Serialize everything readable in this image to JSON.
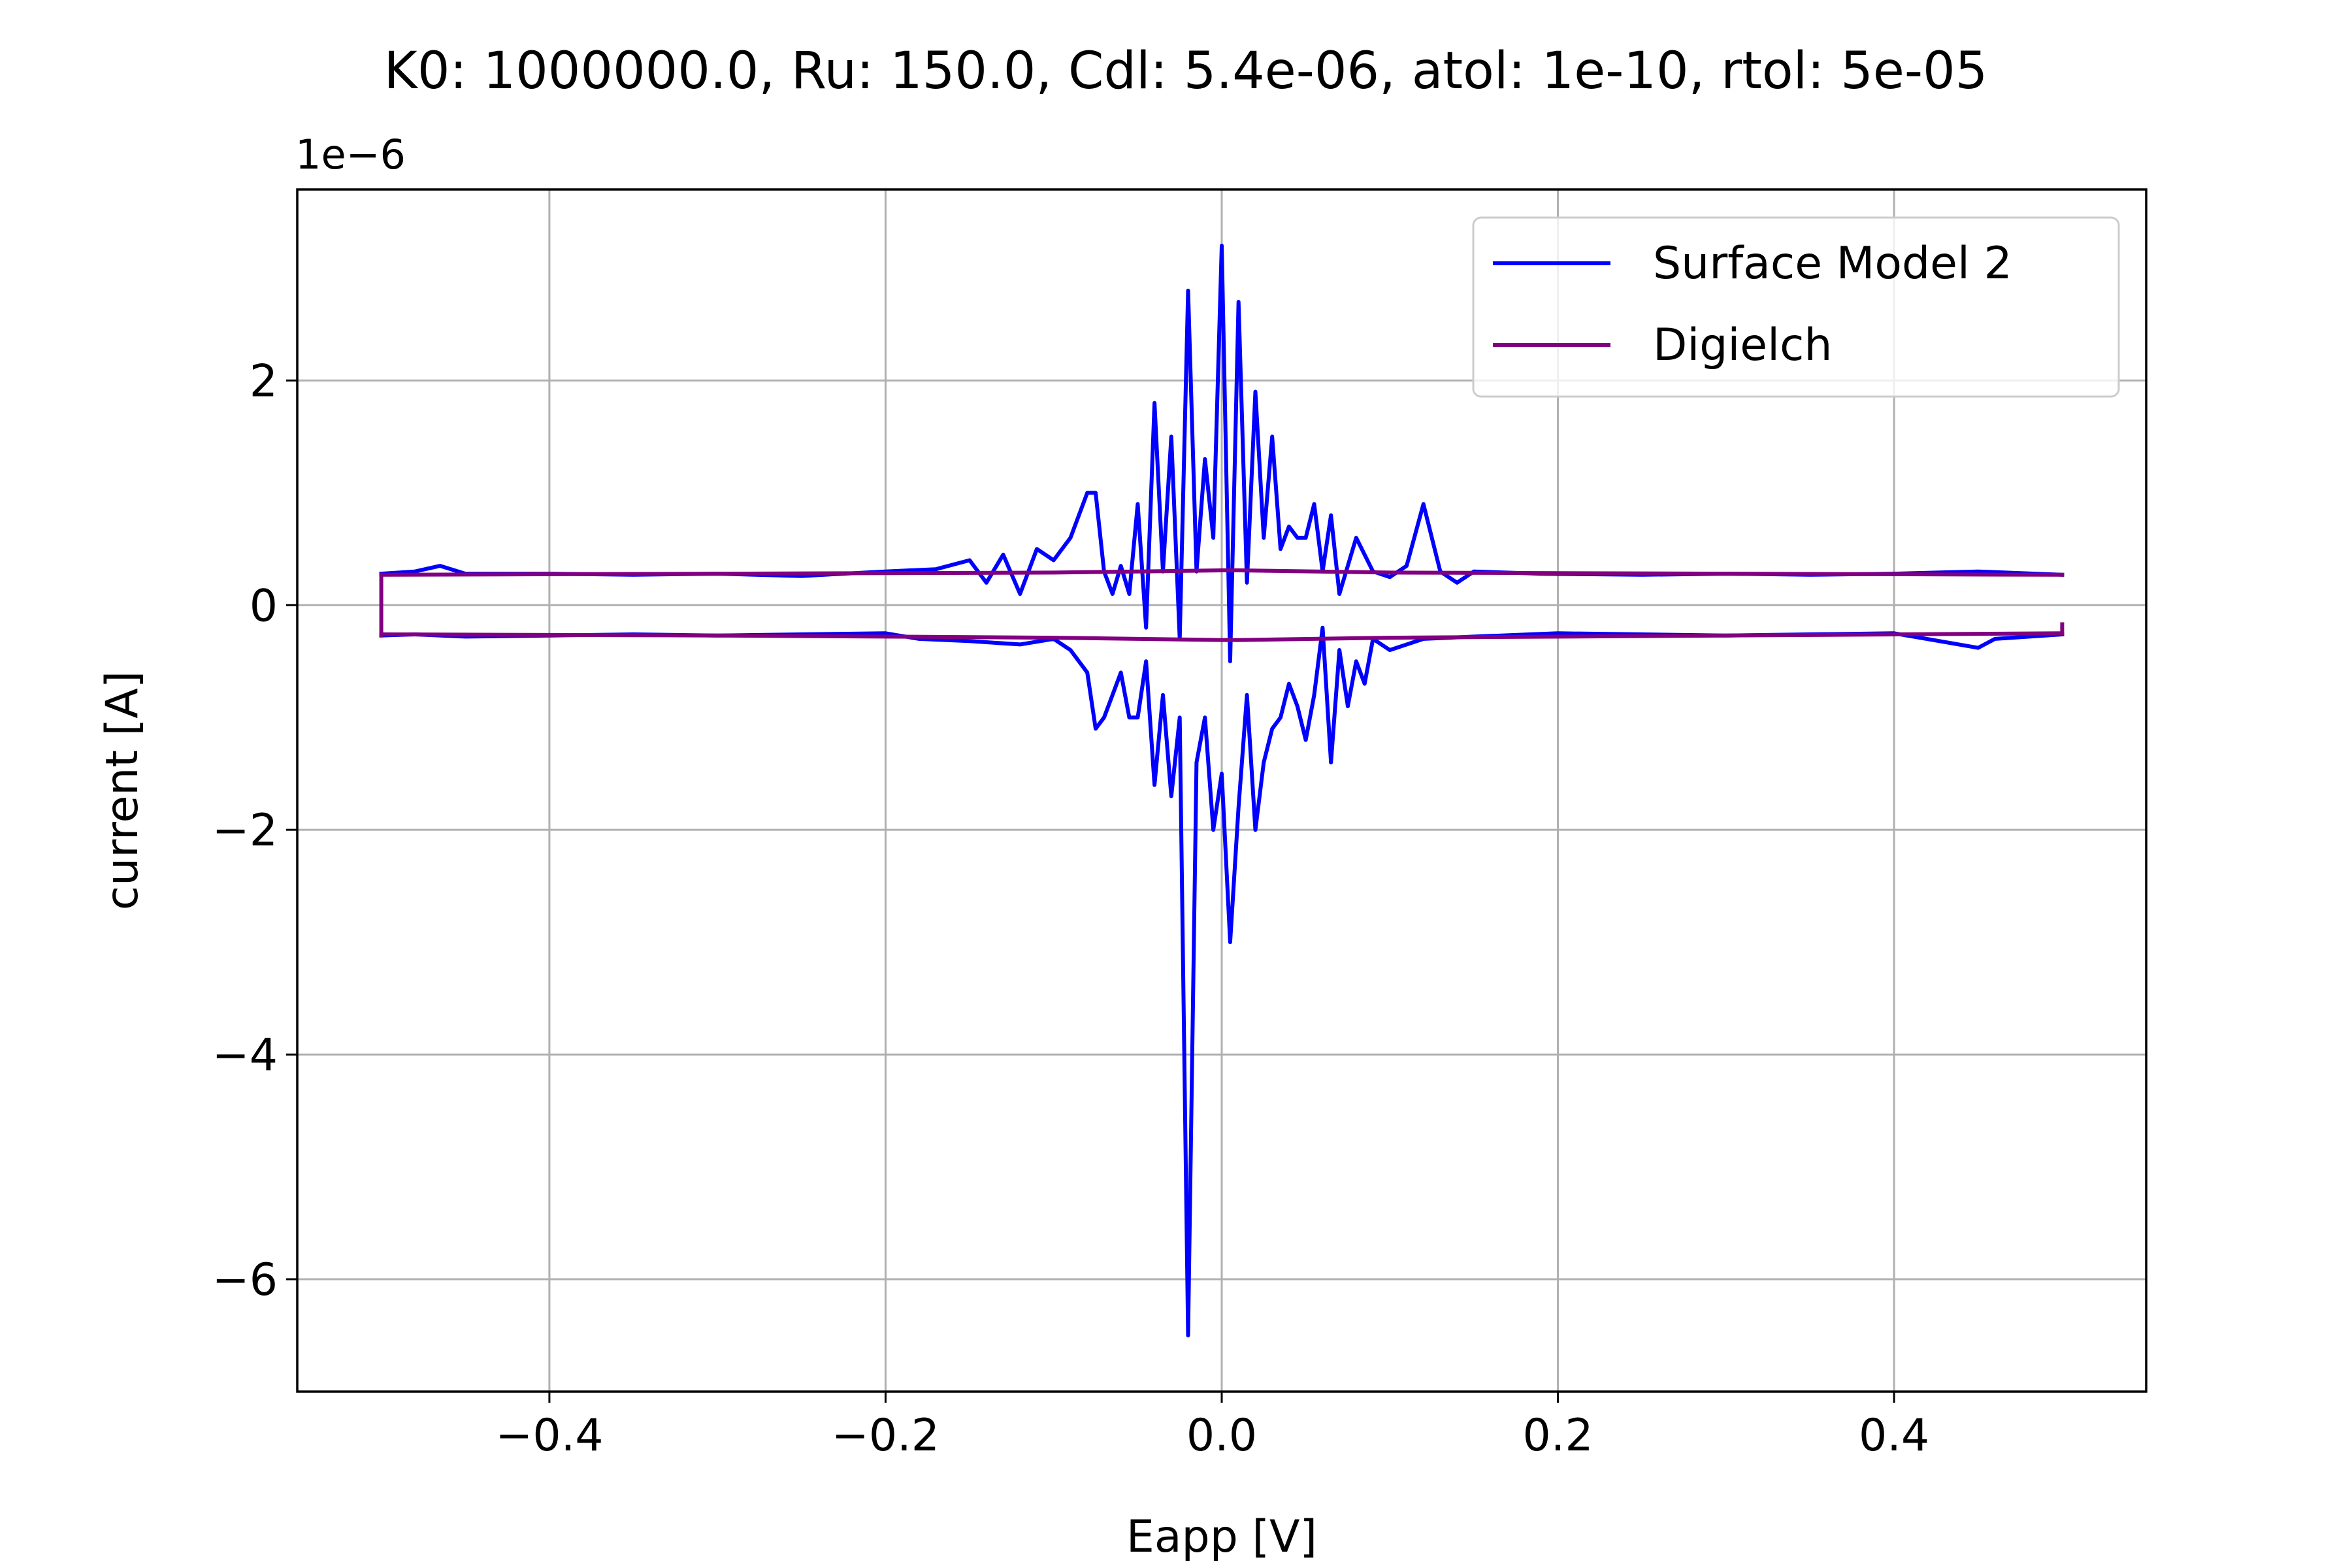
{
  "chart_data": {
    "type": "line",
    "title": "K0: 1000000.0, Ru: 150.0, Cdl: 5.4e-06, atol: 1e-10, rtol: 5e-05",
    "xlabel": "Eapp [V]",
    "ylabel": "current [A]",
    "y_offset_label": "1e−6",
    "xlim": [
      -0.55,
      0.55
    ],
    "ylim": [
      -7.0,
      3.7
    ],
    "xticks": [
      -0.4,
      -0.2,
      0.0,
      0.2,
      0.4
    ],
    "xtick_labels": [
      "−0.4",
      "−0.2",
      "0.0",
      "0.2",
      "0.4"
    ],
    "yticks": [
      2,
      0,
      -2,
      -4,
      -6
    ],
    "ytick_labels": [
      "2",
      "0",
      "−2",
      "−4",
      "−6"
    ],
    "grid": true,
    "legend_position": "top-right",
    "series": [
      {
        "name": "Surface Model 2",
        "color": "#0000ff",
        "forward": {
          "x": [
            -0.5,
            -0.48,
            -0.465,
            -0.45,
            -0.4,
            -0.35,
            -0.3,
            -0.25,
            -0.2,
            -0.17,
            -0.15,
            -0.14,
            -0.13,
            -0.12,
            -0.11,
            -0.1,
            -0.09,
            -0.08,
            -0.075,
            -0.07,
            -0.065,
            -0.06,
            -0.055,
            -0.05,
            -0.045,
            -0.04,
            -0.035,
            -0.03,
            -0.025,
            -0.02,
            -0.015,
            -0.01,
            -0.005,
            0.0,
            0.005,
            0.01,
            0.015,
            0.02,
            0.025,
            0.03,
            0.035,
            0.04,
            0.045,
            0.05,
            0.055,
            0.06,
            0.065,
            0.07,
            0.08,
            0.09,
            0.1,
            0.11,
            0.12,
            0.13,
            0.14,
            0.15,
            0.19,
            0.25,
            0.3,
            0.35,
            0.4,
            0.45,
            0.5
          ],
          "y": [
            0.28,
            0.3,
            0.35,
            0.28,
            0.28,
            0.27,
            0.28,
            0.26,
            0.3,
            0.32,
            0.4,
            0.2,
            0.45,
            0.1,
            0.5,
            0.4,
            0.6,
            1.0,
            1.0,
            0.3,
            0.1,
            0.35,
            0.1,
            0.9,
            -0.2,
            1.8,
            0.3,
            1.5,
            -0.3,
            2.8,
            0.3,
            1.3,
            0.6,
            3.2,
            -0.5,
            2.7,
            0.2,
            1.9,
            0.6,
            1.5,
            0.5,
            0.7,
            0.6,
            0.6,
            0.9,
            0.3,
            0.8,
            0.1,
            0.6,
            0.3,
            0.25,
            0.35,
            0.9,
            0.3,
            0.2,
            0.3,
            0.28,
            0.27,
            0.28,
            0.27,
            0.28,
            0.3,
            0.27
          ]
        },
        "reverse": {
          "x": [
            0.5,
            0.46,
            0.45,
            0.4,
            0.35,
            0.3,
            0.25,
            0.2,
            0.15,
            0.12,
            0.1,
            0.09,
            0.085,
            0.08,
            0.075,
            0.07,
            0.065,
            0.06,
            0.055,
            0.05,
            0.045,
            0.04,
            0.035,
            0.03,
            0.025,
            0.02,
            0.015,
            0.01,
            0.005,
            0.0,
            -0.005,
            -0.01,
            -0.015,
            -0.02,
            -0.025,
            -0.03,
            -0.035,
            -0.04,
            -0.045,
            -0.05,
            -0.055,
            -0.06,
            -0.065,
            -0.07,
            -0.075,
            -0.08,
            -0.09,
            -0.1,
            -0.12,
            -0.15,
            -0.18,
            -0.2,
            -0.25,
            -0.3,
            -0.35,
            -0.4,
            -0.45,
            -0.48,
            -0.5
          ],
          "y": [
            -0.26,
            -0.3,
            -0.38,
            -0.25,
            -0.26,
            -0.27,
            -0.26,
            -0.25,
            -0.28,
            -0.3,
            -0.4,
            -0.3,
            -0.7,
            -0.5,
            -0.9,
            -0.4,
            -1.4,
            -0.2,
            -0.8,
            -1.2,
            -0.9,
            -0.7,
            -1.0,
            -1.1,
            -1.4,
            -2.0,
            -0.8,
            -1.8,
            -3.0,
            -1.5,
            -2.0,
            -1.0,
            -1.4,
            -6.5,
            -1.0,
            -1.7,
            -0.8,
            -1.6,
            -0.5,
            -1.0,
            -1.0,
            -0.6,
            -0.8,
            -1.0,
            -1.1,
            -0.6,
            -0.4,
            -0.3,
            -0.35,
            -0.32,
            -0.3,
            -0.25,
            -0.26,
            -0.27,
            -0.26,
            -0.27,
            -0.28,
            -0.26,
            -0.27
          ]
        }
      },
      {
        "name": "Digielch",
        "color": "#800080",
        "forward": {
          "x": [
            -0.5,
            -0.3,
            -0.1,
            0.0,
            0.01,
            0.1,
            0.3,
            0.5
          ],
          "y": [
            0.27,
            0.28,
            0.29,
            0.31,
            0.31,
            0.29,
            0.28,
            0.27
          ]
        },
        "reverse": {
          "x": [
            0.5,
            0.3,
            0.1,
            0.01,
            0.0,
            -0.1,
            -0.3,
            -0.5
          ],
          "y": [
            -0.25,
            -0.27,
            -0.29,
            -0.31,
            -0.31,
            -0.29,
            -0.27,
            -0.26
          ]
        },
        "closing": {
          "x": [
            -0.5,
            -0.5
          ],
          "y": [
            -0.27,
            0.27
          ]
        },
        "end_segment": {
          "x": [
            0.5,
            0.5
          ],
          "y": [
            -0.25,
            -0.17
          ]
        }
      }
    ]
  }
}
